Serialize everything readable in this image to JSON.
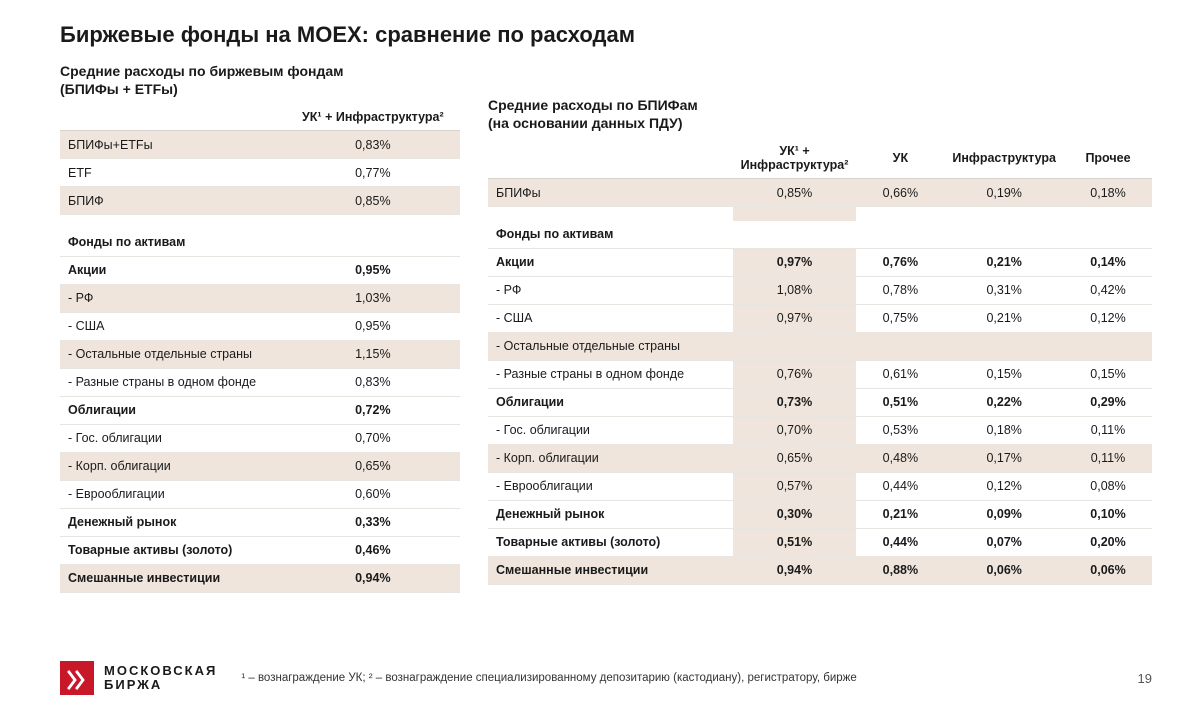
{
  "title": "Биржевые фонды на MOEX: сравнение по расходам",
  "left": {
    "subheading_l1": "Средние расходы по биржевым фондам",
    "subheading_l2": "(БПИФы + ETFы)",
    "header_col": "УК¹ + Инфраструктура²",
    "rows": [
      {
        "style": "shade",
        "label": "БПИФы+ETFы",
        "v": "0,83%"
      },
      {
        "style": "",
        "label": "ETF",
        "v": "0,77%"
      },
      {
        "style": "shade",
        "label": "БПИФ",
        "v": "0,85%"
      },
      {
        "style": "spacer"
      },
      {
        "style": "section-header",
        "label": "Фонды по активам",
        "v": ""
      },
      {
        "style": "bold",
        "label": "Акции",
        "v": "0,95%"
      },
      {
        "style": "shade",
        "label": "- РФ",
        "v": "1,03%"
      },
      {
        "style": "",
        "label": "- США",
        "v": "0,95%"
      },
      {
        "style": "shade",
        "label": "- Остальные отдельные страны",
        "v": "1,15%"
      },
      {
        "style": "",
        "label": "- Разные страны в одном фонде",
        "v": "0,83%"
      },
      {
        "style": "bold",
        "label": "Облигации",
        "v": "0,72%"
      },
      {
        "style": "",
        "label": "- Гос. облигации",
        "v": "0,70%"
      },
      {
        "style": "shade",
        "label": "- Корп. облигации",
        "v": "0,65%"
      },
      {
        "style": "",
        "label": "- Еврооблигации",
        "v": "0,60%"
      },
      {
        "style": "bold",
        "label": "Денежный рынок",
        "v": "0,33%"
      },
      {
        "style": "bold",
        "label": "Товарные активы (золото)",
        "v": "0,46%"
      },
      {
        "style": "shade bold",
        "label": "Смешанные инвестиции",
        "v": "0,94%"
      }
    ]
  },
  "right": {
    "subheading_l1": "Средние расходы по БПИФам",
    "subheading_l2": "(на основании данных ПДУ)",
    "headers": {
      "c1": "УК¹ + Инфраструктура²",
      "c2": "УК",
      "c3": "Инфраструктура",
      "c4": "Прочее"
    },
    "rows": [
      {
        "style": "shade",
        "label": "БПИФы",
        "c1": "0,85%",
        "c2": "0,66%",
        "c3": "0,19%",
        "c4": "0,18%"
      },
      {
        "style": "spacer"
      },
      {
        "style": "section-header",
        "label": "Фонды по активам",
        "c1": "",
        "c2": "",
        "c3": "",
        "c4": ""
      },
      {
        "style": "bold",
        "label": "Акции",
        "c1": "0,97%",
        "c2": "0,76%",
        "c3": "0,21%",
        "c4": "0,14%"
      },
      {
        "style": "",
        "label": "- РФ",
        "c1": "1,08%",
        "c2": "0,78%",
        "c3": "0,31%",
        "c4": "0,42%"
      },
      {
        "style": "",
        "label": "- США",
        "c1": "0,97%",
        "c2": "0,75%",
        "c3": "0,21%",
        "c4": "0,12%"
      },
      {
        "style": "shade",
        "label": "- Остальные отдельные страны",
        "c1": "",
        "c2": "",
        "c3": "",
        "c4": ""
      },
      {
        "style": "",
        "label": "- Разные страны в одном фонде",
        "c1": "0,76%",
        "c2": "0,61%",
        "c3": "0,15%",
        "c4": "0,15%"
      },
      {
        "style": "bold",
        "label": "Облигации",
        "c1": "0,73%",
        "c2": "0,51%",
        "c3": "0,22%",
        "c4": "0,29%"
      },
      {
        "style": "",
        "label": "- Гос. облигации",
        "c1": "0,70%",
        "c2": "0,53%",
        "c3": "0,18%",
        "c4": "0,11%"
      },
      {
        "style": "shade",
        "label": "- Корп. облигации",
        "c1": "0,65%",
        "c2": "0,48%",
        "c3": "0,17%",
        "c4": "0,11%"
      },
      {
        "style": "",
        "label": "- Еврооблигации",
        "c1": "0,57%",
        "c2": "0,44%",
        "c3": "0,12%",
        "c4": "0,08%"
      },
      {
        "style": "bold",
        "label": "Денежный рынок",
        "c1": "0,30%",
        "c2": "0,21%",
        "c3": "0,09%",
        "c4": "0,10%"
      },
      {
        "style": "bold",
        "label": "Товарные активы (золото)",
        "c1": "0,51%",
        "c2": "0,44%",
        "c3": "0,07%",
        "c4": "0,20%"
      },
      {
        "style": "shade bold",
        "label": "Смешанные инвестиции",
        "c1": "0,94%",
        "c2": "0,88%",
        "c3": "0,06%",
        "c4": "0,06%"
      }
    ]
  },
  "footer": {
    "logo_l1": "МОСКОВСКАЯ",
    "logo_l2": "БИРЖА",
    "footnote": "¹ – вознаграждение УК;  ² – вознаграждение специализированному депозитарию (кастодиану), регистратору, бирже",
    "page": "19"
  },
  "colors": {
    "shade_bg": "#efe5dd",
    "border": "#e8e4e0",
    "accent": "#c9172a",
    "text": "#1a1a1a"
  }
}
